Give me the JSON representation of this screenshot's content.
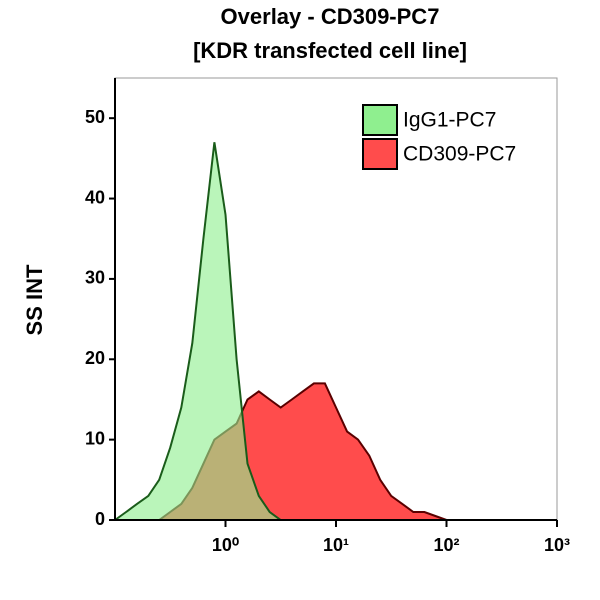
{
  "chart_data": {
    "type": "area",
    "title": "Overlay - CD309-PC7",
    "subtitle": "[KDR transfected cell line]",
    "y_label": "SS INT",
    "x_scale": "log",
    "x": [
      0.1,
      0.126,
      0.158,
      0.2,
      0.251,
      0.316,
      0.398,
      0.501,
      0.631,
      0.794,
      1,
      1.26,
      1.58,
      2,
      2.51,
      3.16,
      3.98,
      5.01,
      6.31,
      7.94,
      10,
      12.6,
      15.8,
      20,
      25.1,
      31.6,
      39.8,
      50.1,
      63.1,
      79.4,
      100
    ],
    "series": [
      {
        "name": "CD309-PC7",
        "color": "#ff4c4c",
        "line_color": "#5a0000",
        "values": [
          0,
          0,
          0,
          0,
          0,
          1,
          2,
          4,
          7,
          10,
          11,
          12,
          15,
          16,
          15,
          14,
          15,
          16,
          17,
          17,
          14,
          11,
          10,
          8,
          5,
          3,
          2,
          1,
          1,
          0.5,
          0
        ]
      },
      {
        "name": "IgG1-PC7",
        "color": "#8fef8f",
        "line_color": "#1a5c1a",
        "values": [
          0,
          1,
          2,
          3,
          5,
          9,
          14,
          22,
          35,
          47,
          38,
          20,
          7,
          3,
          1,
          0,
          0,
          0,
          0,
          0,
          0,
          0,
          0,
          0,
          0,
          0,
          0,
          0,
          0,
          0,
          0
        ]
      }
    ],
    "xlim": [
      0.1,
      1000
    ],
    "xticks": [
      {
        "value": 1,
        "label": "10⁰"
      },
      {
        "value": 10,
        "label": "10¹"
      },
      {
        "value": 100,
        "label": "10²"
      },
      {
        "value": 1000,
        "label": "10³"
      }
    ],
    "ylim": [
      0,
      55
    ],
    "yticks": [
      0,
      10,
      20,
      30,
      40,
      50
    ],
    "legend": "upper right"
  }
}
